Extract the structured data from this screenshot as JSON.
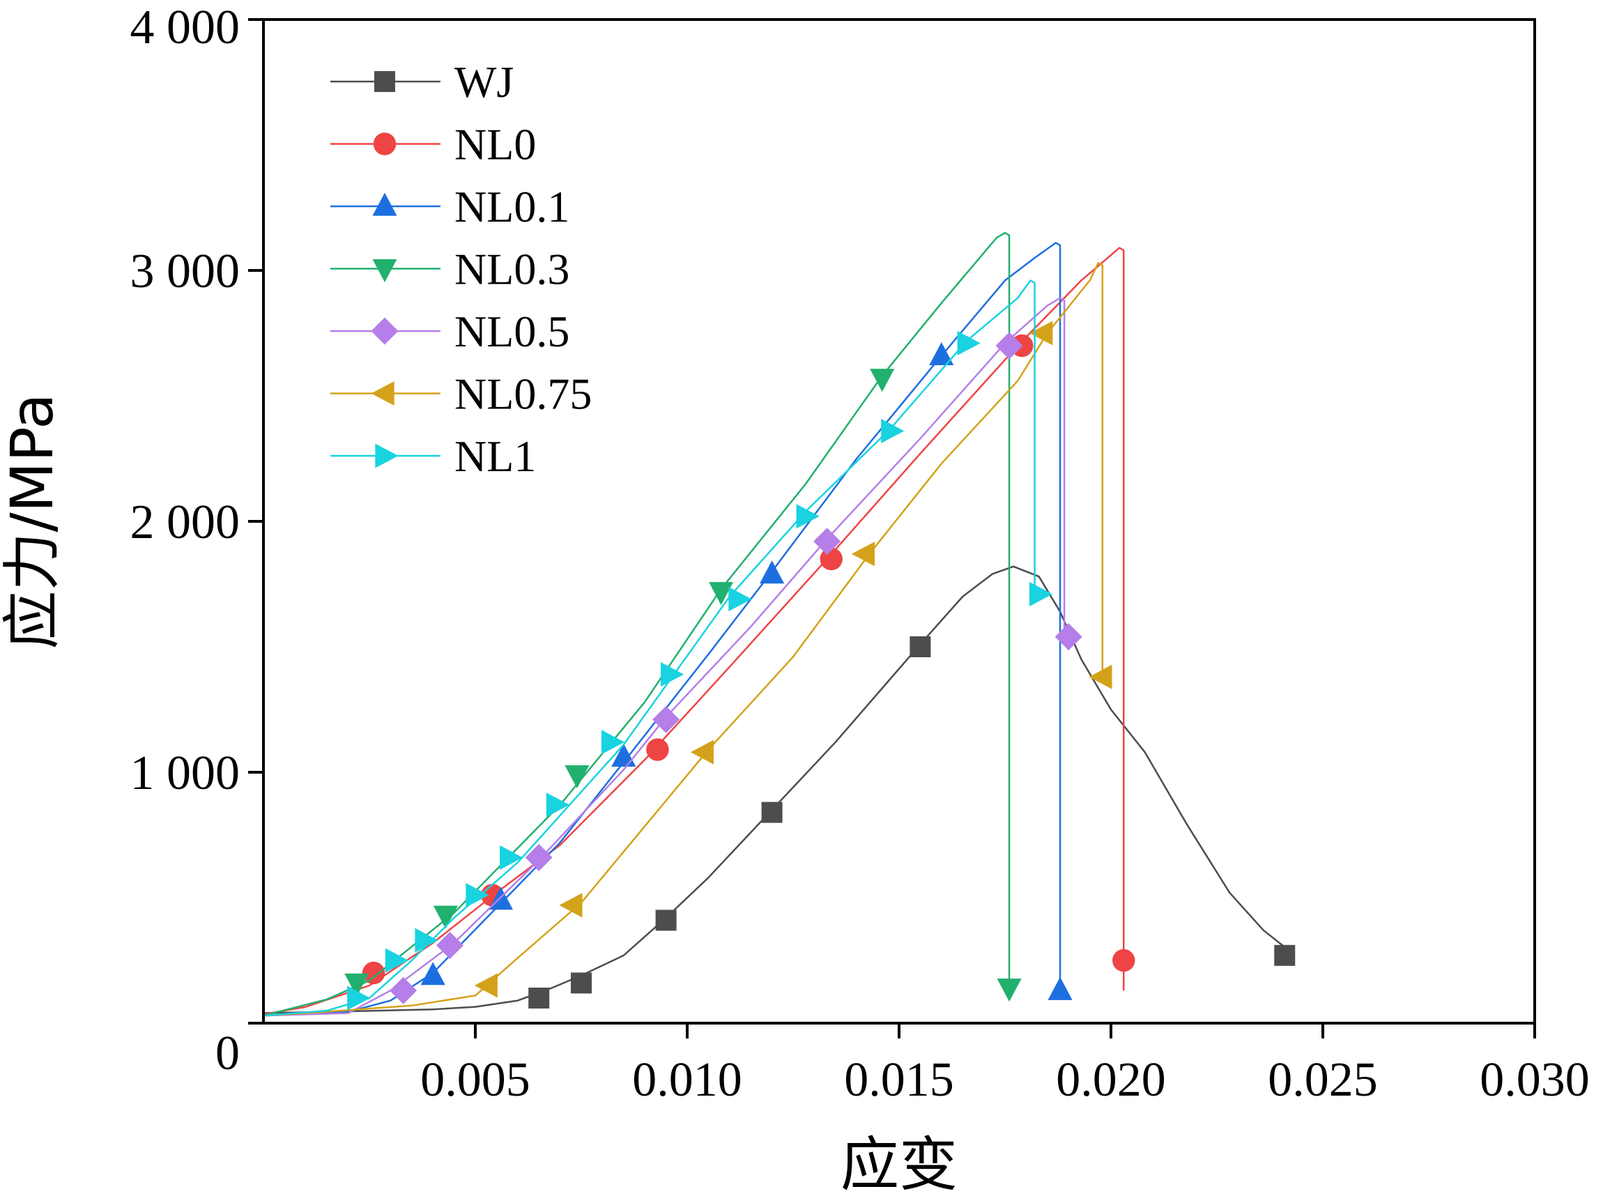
{
  "chart_data": {
    "type": "line",
    "title": "",
    "xlabel": "应变",
    "ylabel": "应力/MPa",
    "xlim": [
      0,
      0.03
    ],
    "ylim": [
      0,
      4000
    ],
    "x_ticks": [
      0.005,
      0.01,
      0.015,
      0.02,
      0.025,
      0.03
    ],
    "x_tick_labels": [
      "0.005",
      "0.010",
      "0.015",
      "0.020",
      "0.025",
      "0.030"
    ],
    "y_ticks": [
      0,
      1000,
      2000,
      3000,
      4000
    ],
    "y_tick_labels": [
      "0",
      "1 000",
      "2 000",
      "3 000",
      "4 000"
    ],
    "grid": false,
    "legend_position": "top-left",
    "series": [
      {
        "name": "WJ",
        "color": "#4d4d4d",
        "marker": "square",
        "line": [
          [
            0,
            40
          ],
          [
            0.0015,
            45
          ],
          [
            0.004,
            55
          ],
          [
            0.005,
            65
          ],
          [
            0.006,
            90
          ],
          [
            0.0068,
            140
          ],
          [
            0.0075,
            190
          ],
          [
            0.0085,
            270
          ],
          [
            0.0095,
            420
          ],
          [
            0.0105,
            580
          ],
          [
            0.012,
            850
          ],
          [
            0.0135,
            1120
          ],
          [
            0.0155,
            1510
          ],
          [
            0.0165,
            1700
          ],
          [
            0.0172,
            1790
          ],
          [
            0.0177,
            1820
          ],
          [
            0.0183,
            1780
          ],
          [
            0.0188,
            1640
          ],
          [
            0.0193,
            1450
          ],
          [
            0.02,
            1250
          ],
          [
            0.0208,
            1080
          ],
          [
            0.0218,
            790
          ],
          [
            0.0228,
            520
          ],
          [
            0.0236,
            370
          ],
          [
            0.0242,
            290
          ]
        ],
        "markers": [
          [
            0.0065,
            100
          ],
          [
            0.0075,
            160
          ],
          [
            0.0095,
            410
          ],
          [
            0.012,
            840
          ],
          [
            0.0155,
            1500
          ],
          [
            0.0241,
            270
          ]
        ]
      },
      {
        "name": "NL0",
        "color": "#ef4444",
        "marker": "circle",
        "line": [
          [
            0,
            35
          ],
          [
            0.001,
            65
          ],
          [
            0.0025,
            150
          ],
          [
            0.004,
            320
          ],
          [
            0.0055,
            520
          ],
          [
            0.007,
            710
          ],
          [
            0.009,
            1050
          ],
          [
            0.011,
            1420
          ],
          [
            0.0133,
            1850
          ],
          [
            0.0155,
            2270
          ],
          [
            0.0178,
            2700
          ],
          [
            0.0193,
            2960
          ],
          [
            0.0202,
            3090
          ],
          [
            0.0203,
            3080
          ],
          [
            0.0203,
            130
          ]
        ],
        "markers": [
          [
            0.0026,
            200
          ],
          [
            0.0054,
            510
          ],
          [
            0.0093,
            1090
          ],
          [
            0.0134,
            1850
          ],
          [
            0.0179,
            2700
          ],
          [
            0.0203,
            250
          ]
        ]
      },
      {
        "name": "NL0.1",
        "color": "#1d6fe0",
        "marker": "triangle-up",
        "line": [
          [
            0,
            30
          ],
          [
            0.002,
            45
          ],
          [
            0.003,
            90
          ],
          [
            0.004,
            200
          ],
          [
            0.0055,
            460
          ],
          [
            0.007,
            720
          ],
          [
            0.0085,
            1040
          ],
          [
            0.0105,
            1470
          ],
          [
            0.012,
            1800
          ],
          [
            0.014,
            2250
          ],
          [
            0.016,
            2660
          ],
          [
            0.0175,
            2960
          ],
          [
            0.0182,
            3050
          ],
          [
            0.0187,
            3110
          ],
          [
            0.0188,
            3100
          ],
          [
            0.0188,
            140
          ]
        ],
        "markers": [
          [
            0.004,
            190
          ],
          [
            0.0056,
            490
          ],
          [
            0.0085,
            1060
          ],
          [
            0.012,
            1790
          ],
          [
            0.016,
            2660
          ],
          [
            0.0188,
            130
          ]
        ]
      },
      {
        "name": "NL0.3",
        "color": "#22b06e",
        "marker": "triangle-down",
        "line": [
          [
            0,
            30
          ],
          [
            0.0015,
            95
          ],
          [
            0.0025,
            170
          ],
          [
            0.0045,
            440
          ],
          [
            0.007,
            870
          ],
          [
            0.009,
            1280
          ],
          [
            0.0108,
            1730
          ],
          [
            0.0128,
            2150
          ],
          [
            0.0146,
            2580
          ],
          [
            0.016,
            2870
          ],
          [
            0.0173,
            3130
          ],
          [
            0.0175,
            3150
          ],
          [
            0.0176,
            3140
          ],
          [
            0.0176,
            150
          ]
        ],
        "markers": [
          [
            0.0022,
            160
          ],
          [
            0.0043,
            430
          ],
          [
            0.0074,
            990
          ],
          [
            0.0108,
            1720
          ],
          [
            0.0146,
            2570
          ],
          [
            0.0176,
            140
          ]
        ]
      },
      {
        "name": "NL0.5",
        "color": "#b57ee8",
        "marker": "diamond",
        "line": [
          [
            0,
            30
          ],
          [
            0.002,
            40
          ],
          [
            0.003,
            130
          ],
          [
            0.0045,
            320
          ],
          [
            0.0065,
            650
          ],
          [
            0.0085,
            1010
          ],
          [
            0.0095,
            1220
          ],
          [
            0.0115,
            1580
          ],
          [
            0.0133,
            1930
          ],
          [
            0.0155,
            2330
          ],
          [
            0.0175,
            2710
          ],
          [
            0.0185,
            2860
          ],
          [
            0.0188,
            2890
          ],
          [
            0.0189,
            2880
          ],
          [
            0.0189,
            1520
          ]
        ],
        "markers": [
          [
            0.0033,
            130
          ],
          [
            0.0044,
            310
          ],
          [
            0.0065,
            660
          ],
          [
            0.0095,
            1210
          ],
          [
            0.0133,
            1920
          ],
          [
            0.0176,
            2700
          ],
          [
            0.019,
            1540
          ]
        ]
      },
      {
        "name": "NL0.75",
        "color": "#d4a21a",
        "marker": "triangle-left",
        "line": [
          [
            0,
            30
          ],
          [
            0.001,
            40
          ],
          [
            0.0035,
            70
          ],
          [
            0.005,
            110
          ],
          [
            0.006,
            260
          ],
          [
            0.0075,
            480
          ],
          [
            0.0105,
            1090
          ],
          [
            0.0125,
            1460
          ],
          [
            0.0143,
            1870
          ],
          [
            0.016,
            2230
          ],
          [
            0.0178,
            2560
          ],
          [
            0.0185,
            2750
          ],
          [
            0.0195,
            2960
          ],
          [
            0.0197,
            3030
          ],
          [
            0.0198,
            3020
          ],
          [
            0.0198,
            1380
          ]
        ],
        "markers": [
          [
            0.0053,
            150
          ],
          [
            0.0073,
            470
          ],
          [
            0.0104,
            1080
          ],
          [
            0.0142,
            1870
          ],
          [
            0.0184,
            2750
          ],
          [
            0.0198,
            1380
          ]
        ]
      },
      {
        "name": "NL1",
        "color": "#19d3e0",
        "marker": "triangle-right",
        "line": [
          [
            0,
            30
          ],
          [
            0.0015,
            50
          ],
          [
            0.0025,
            100
          ],
          [
            0.0035,
            250
          ],
          [
            0.0045,
            420
          ],
          [
            0.006,
            640
          ],
          [
            0.0085,
            1110
          ],
          [
            0.011,
            1700
          ],
          [
            0.0128,
            2040
          ],
          [
            0.0148,
            2370
          ],
          [
            0.0166,
            2720
          ],
          [
            0.0178,
            2890
          ],
          [
            0.0181,
            2960
          ],
          [
            0.0182,
            2950
          ],
          [
            0.0182,
            1720
          ]
        ],
        "markers": [
          [
            0.0022,
            100
          ],
          [
            0.0031,
            250
          ],
          [
            0.0038,
            330
          ],
          [
            0.005,
            510
          ],
          [
            0.0058,
            660
          ],
          [
            0.0069,
            870
          ],
          [
            0.0082,
            1120
          ],
          [
            0.0096,
            1390
          ],
          [
            0.0112,
            1690
          ],
          [
            0.0128,
            2020
          ],
          [
            0.0148,
            2360
          ],
          [
            0.0166,
            2710
          ],
          [
            0.0183,
            1710
          ]
        ]
      }
    ]
  }
}
